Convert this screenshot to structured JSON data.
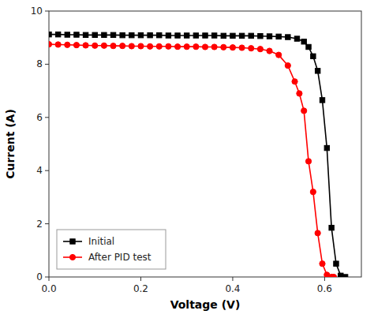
{
  "chart_data": {
    "type": "line",
    "title": "",
    "xlabel": "Voltage (V)",
    "ylabel": "Current (A)",
    "xlim": [
      0.0,
      0.68
    ],
    "ylim": [
      0.0,
      10.0
    ],
    "xticks": [
      {
        "value": 0.0,
        "label": "0.0"
      },
      0.2,
      0.4,
      0.6
    ],
    "yticks": [
      0,
      2,
      4,
      6,
      8,
      10
    ],
    "grid": false,
    "legend": "lower left",
    "series": [
      {
        "name": "Initial",
        "color": "#000000",
        "marker": "square",
        "line_style": "solid",
        "x": [
          0.0,
          0.02,
          0.04,
          0.06,
          0.08,
          0.1,
          0.12,
          0.14,
          0.16,
          0.18,
          0.2,
          0.22,
          0.24,
          0.26,
          0.28,
          0.3,
          0.32,
          0.34,
          0.36,
          0.38,
          0.4,
          0.42,
          0.44,
          0.46,
          0.48,
          0.5,
          0.52,
          0.54,
          0.555,
          0.565,
          0.575,
          0.585,
          0.595,
          0.605,
          0.615,
          0.625,
          0.635,
          0.645
        ],
        "values": [
          9.12,
          9.12,
          9.11,
          9.11,
          9.1,
          9.1,
          9.1,
          9.1,
          9.09,
          9.09,
          9.09,
          9.09,
          9.09,
          9.08,
          9.08,
          9.08,
          9.08,
          9.08,
          9.08,
          9.07,
          9.07,
          9.07,
          9.07,
          9.06,
          9.05,
          9.04,
          9.02,
          8.96,
          8.85,
          8.65,
          8.3,
          7.75,
          6.65,
          4.85,
          1.85,
          0.5,
          0.05,
          0.0
        ]
      },
      {
        "name": "After PID test",
        "color": "#ff0000",
        "marker": "circle",
        "line_style": "solid",
        "x": [
          0.0,
          0.02,
          0.04,
          0.06,
          0.08,
          0.1,
          0.12,
          0.14,
          0.16,
          0.18,
          0.2,
          0.22,
          0.24,
          0.26,
          0.28,
          0.3,
          0.32,
          0.34,
          0.36,
          0.38,
          0.4,
          0.42,
          0.44,
          0.46,
          0.48,
          0.5,
          0.52,
          0.535,
          0.545,
          0.555,
          0.565,
          0.575,
          0.585,
          0.595,
          0.605,
          0.615,
          0.62
        ],
        "values": [
          8.75,
          8.74,
          8.73,
          8.72,
          8.71,
          8.7,
          8.7,
          8.69,
          8.69,
          8.68,
          8.68,
          8.67,
          8.67,
          8.67,
          8.66,
          8.66,
          8.66,
          8.65,
          8.65,
          8.64,
          8.63,
          8.62,
          8.6,
          8.57,
          8.5,
          8.35,
          7.95,
          7.35,
          6.9,
          6.25,
          4.35,
          3.2,
          1.65,
          0.5,
          0.08,
          0.0,
          0.0
        ]
      }
    ]
  }
}
